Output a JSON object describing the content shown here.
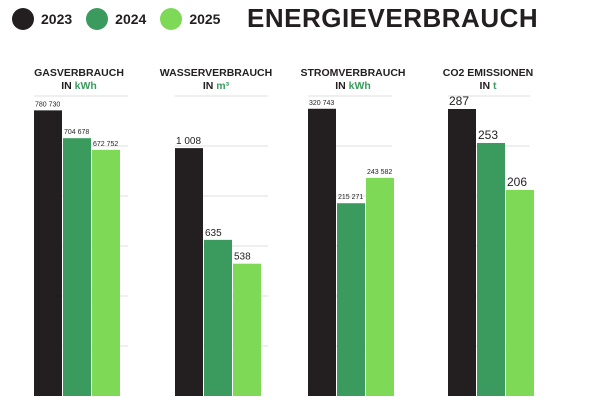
{
  "title": "ENERGIEVERBRAUCH",
  "legend": [
    {
      "label": "2023",
      "color": "#231f20"
    },
    {
      "label": "2024",
      "color": "#3b9b5e"
    },
    {
      "label": "2025",
      "color": "#7ed957"
    }
  ],
  "panels": [
    {
      "title": "GASVERBRAUCH",
      "unit_prefix": "IN",
      "unit": "kWh"
    },
    {
      "title": "WASSERVERBRAUCH",
      "unit_prefix": "IN",
      "unit": "m³"
    },
    {
      "title": "STROMVERBRAUCH",
      "unit_prefix": "IN",
      "unit": "kWh"
    },
    {
      "title": "CO2 EMISSIONEN",
      "unit_prefix": "IN",
      "unit": "t"
    }
  ],
  "chart_data": [
    {
      "type": "bar",
      "title": "GASVERBRAUCH",
      "ylabel": "IN kWh",
      "categories": [
        "2023",
        "2024",
        "2025"
      ],
      "values": [
        780730,
        704678,
        672752
      ],
      "value_labels": [
        "780 730",
        "704 678",
        "672 752"
      ],
      "ylim": [
        0,
        820000
      ],
      "grid": true
    },
    {
      "type": "bar",
      "title": "WASSERVERBRAUCH",
      "ylabel": "IN m³",
      "categories": [
        "2023",
        "2024",
        "2025"
      ],
      "values": [
        1008,
        635,
        538
      ],
      "value_labels": [
        "1 008",
        "635",
        "538"
      ],
      "ylim": [
        0,
        1220
      ],
      "grid": true
    },
    {
      "type": "bar",
      "title": "STROMVERBRAUCH",
      "ylabel": "IN kWh",
      "categories": [
        "2023",
        "2024",
        "2025"
      ],
      "values": [
        320743,
        215271,
        243582
      ],
      "value_labels": [
        "320 743",
        "215 271",
        "243 582"
      ],
      "ylim": [
        0,
        335000
      ],
      "grid": true
    },
    {
      "type": "bar",
      "title": "CO2 EMISSIONEN",
      "ylabel": "IN t",
      "categories": [
        "2023",
        "2024",
        "2025"
      ],
      "values": [
        287,
        253,
        206
      ],
      "value_labels": [
        "287",
        "253",
        "206"
      ],
      "ylim": [
        0,
        300
      ],
      "grid": true
    }
  ]
}
